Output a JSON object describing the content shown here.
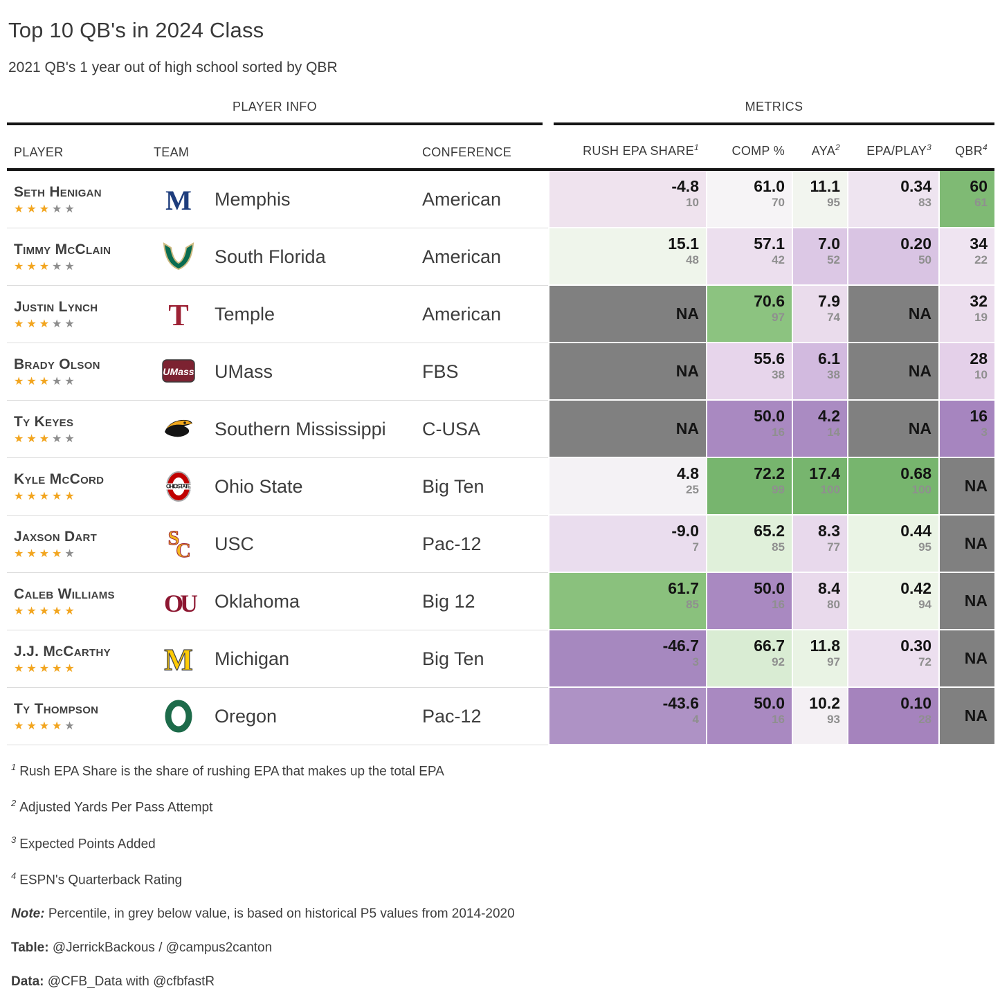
{
  "title": "Top 10 QB's in 2024 Class",
  "subtitle": "2021 QB's 1 year out of high school sorted by QBR",
  "groups": {
    "player_info": "PLAYER INFO",
    "metrics": "METRICS"
  },
  "chart_data": {
    "type": "table",
    "player_columns": {
      "player": "PLAYER",
      "team": "TEAM",
      "conference": "CONFERENCE"
    },
    "metric_columns": [
      {
        "label": "RUSH EPA SHARE",
        "sup": "1"
      },
      {
        "label": "COMP %",
        "sup": ""
      },
      {
        "label": "AYA",
        "sup": "2"
      },
      {
        "label": "EPA/PLAY",
        "sup": "3"
      },
      {
        "label": "QBR",
        "sup": "4"
      }
    ],
    "colors": {
      "na_cell": "#808080",
      "high_green": "#77b56e",
      "low_purple": "#a685bf",
      "gold_star": "#f2a51f",
      "grey_star": "#8d8d8d"
    },
    "rows": [
      {
        "player": "Seth Henigan",
        "stars": 3,
        "logo": "memphis",
        "team": "Memphis",
        "conference": "American",
        "metrics": [
          {
            "v": "-4.8",
            "p": "10",
            "bg": "#efe3ee"
          },
          {
            "v": "61.0",
            "p": "70",
            "bg": "#f6f4f6"
          },
          {
            "v": "11.1",
            "p": "95",
            "bg": "#f2f5ef"
          },
          {
            "v": "0.34",
            "p": "83",
            "bg": "#eee4f0"
          },
          {
            "v": "60",
            "p": "61",
            "bg": "#7fba74"
          }
        ]
      },
      {
        "player": "Timmy McClain",
        "stars": 3,
        "logo": "south-florida",
        "team": "South Florida",
        "conference": "American",
        "metrics": [
          {
            "v": "15.1",
            "p": "48",
            "bg": "#eff5eb"
          },
          {
            "v": "57.1",
            "p": "42",
            "bg": "#ecdfee"
          },
          {
            "v": "7.0",
            "p": "52",
            "bg": "#dcc8e5"
          },
          {
            "v": "0.20",
            "p": "50",
            "bg": "#d9c4e3"
          },
          {
            "v": "34",
            "p": "22",
            "bg": "#efe4f1"
          }
        ]
      },
      {
        "player": "Justin Lynch",
        "stars": 3,
        "logo": "temple",
        "team": "Temple",
        "conference": "American",
        "metrics": [
          {
            "v": "NA",
            "p": null,
            "bg": "#808080"
          },
          {
            "v": "70.6",
            "p": "97",
            "bg": "#8cc380"
          },
          {
            "v": "7.9",
            "p": "74",
            "bg": "#eadcec"
          },
          {
            "v": "NA",
            "p": null,
            "bg": "#808080"
          },
          {
            "v": "32",
            "p": "19",
            "bg": "#ecdeee"
          }
        ]
      },
      {
        "player": "Brady Olson",
        "stars": 3,
        "logo": "umass",
        "team": "UMass",
        "conference": "FBS",
        "metrics": [
          {
            "v": "NA",
            "p": null,
            "bg": "#808080"
          },
          {
            "v": "55.6",
            "p": "38",
            "bg": "#e7d5eb"
          },
          {
            "v": "6.1",
            "p": "38",
            "bg": "#d2badf"
          },
          {
            "v": "NA",
            "p": null,
            "bg": "#808080"
          },
          {
            "v": "28",
            "p": "10",
            "bg": "#e4d0e9"
          }
        ]
      },
      {
        "player": "Ty Keyes",
        "stars": 3,
        "logo": "southern-miss",
        "team": "Southern Mississippi",
        "conference": "C-USA",
        "metrics": [
          {
            "v": "NA",
            "p": null,
            "bg": "#808080"
          },
          {
            "v": "50.0",
            "p": "16",
            "bg": "#a989c1"
          },
          {
            "v": "4.2",
            "p": "14",
            "bg": "#aa8bc2"
          },
          {
            "v": "NA",
            "p": null,
            "bg": "#808080"
          },
          {
            "v": "16",
            "p": "3",
            "bg": "#a685bf"
          }
        ]
      },
      {
        "player": "Kyle McCord",
        "stars": 5,
        "logo": "ohio-state",
        "team": "Ohio State",
        "conference": "Big Ten",
        "metrics": [
          {
            "v": "4.8",
            "p": "25",
            "bg": "#f4f2f5"
          },
          {
            "v": "72.2",
            "p": "99",
            "bg": "#77b56e"
          },
          {
            "v": "17.4",
            "p": "100",
            "bg": "#77b56e"
          },
          {
            "v": "0.68",
            "p": "100",
            "bg": "#77b56e"
          },
          {
            "v": "NA",
            "p": null,
            "bg": "#808080"
          }
        ]
      },
      {
        "player": "Jaxson Dart",
        "stars": 4,
        "logo": "usc",
        "team": "USC",
        "conference": "Pac-12",
        "metrics": [
          {
            "v": "-9.0",
            "p": "7",
            "bg": "#eaddee"
          },
          {
            "v": "65.2",
            "p": "85",
            "bg": "#e0f0da"
          },
          {
            "v": "8.3",
            "p": "77",
            "bg": "#e8d9ec"
          },
          {
            "v": "0.44",
            "p": "95",
            "bg": "#eaf4e5"
          },
          {
            "v": "NA",
            "p": null,
            "bg": "#808080"
          }
        ]
      },
      {
        "player": "Caleb Williams",
        "stars": 5,
        "logo": "oklahoma",
        "team": "Oklahoma",
        "conference": "Big 12",
        "metrics": [
          {
            "v": "61.7",
            "p": "85",
            "bg": "#8ac17d"
          },
          {
            "v": "50.0",
            "p": "16",
            "bg": "#a989c1"
          },
          {
            "v": "8.4",
            "p": "80",
            "bg": "#e9daec"
          },
          {
            "v": "0.42",
            "p": "94",
            "bg": "#edf5e8"
          },
          {
            "v": "NA",
            "p": null,
            "bg": "#808080"
          }
        ]
      },
      {
        "player": "J.J. McCarthy",
        "stars": 5,
        "logo": "michigan",
        "team": "Michigan",
        "conference": "Big Ten",
        "metrics": [
          {
            "v": "-46.7",
            "p": "3",
            "bg": "#a688bf"
          },
          {
            "v": "66.7",
            "p": "92",
            "bg": "#d9ecd3"
          },
          {
            "v": "11.8",
            "p": "97",
            "bg": "#e9f3e4"
          },
          {
            "v": "0.30",
            "p": "72",
            "bg": "#ecdfef"
          },
          {
            "v": "NA",
            "p": null,
            "bg": "#808080"
          }
        ]
      },
      {
        "player": "Ty Thompson",
        "stars": 4,
        "logo": "oregon",
        "team": "Oregon",
        "conference": "Pac-12",
        "metrics": [
          {
            "v": "-43.6",
            "p": "4",
            "bg": "#ae92c5"
          },
          {
            "v": "50.0",
            "p": "16",
            "bg": "#a989c1"
          },
          {
            "v": "10.2",
            "p": "93",
            "bg": "#f4f0f4"
          },
          {
            "v": "0.10",
            "p": "28",
            "bg": "#a583bd"
          },
          {
            "v": "NA",
            "p": null,
            "bg": "#808080"
          }
        ]
      }
    ]
  },
  "footnotes": [
    {
      "sup": "1",
      "text": "Rush EPA Share is the share of rushing EPA that makes up the total EPA"
    },
    {
      "sup": "2",
      "text": "Adjusted Yards Per Pass Attempt"
    },
    {
      "sup": "3",
      "text": "Expected Points Added"
    },
    {
      "sup": "4",
      "text": "ESPN's Quarterback Rating"
    }
  ],
  "credits": [
    {
      "label": "Note:",
      "italic": true,
      "text": "Percentile, in grey below value, is based on historical P5 values from 2014-2020"
    },
    {
      "label": "Table:",
      "italic": false,
      "text": "@JerrickBackous / @campus2canton"
    },
    {
      "label": "Data:",
      "italic": false,
      "text": "@CFB_Data with @cfbfastR"
    }
  ]
}
